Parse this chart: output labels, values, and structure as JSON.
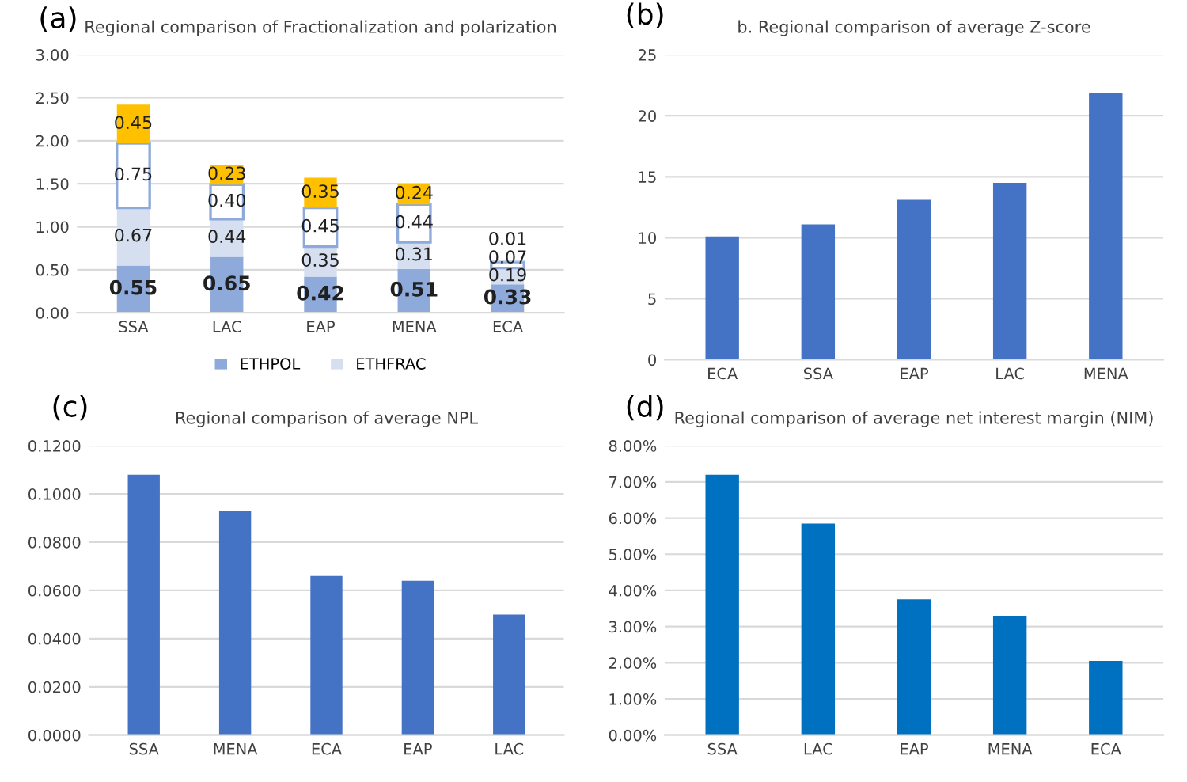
{
  "chart_data": [
    {
      "type": "bar",
      "stacked": true,
      "title": "Regional comparison of Fractionalization and polarization",
      "annotations": [
        "(a)"
      ],
      "categories": [
        "SSA",
        "LAC",
        "EAP",
        "MENA",
        "ECA"
      ],
      "series": [
        {
          "name": "ETHPOL",
          "color": "#8eaadb",
          "values": [
            0.55,
            0.65,
            0.42,
            0.51,
            0.33
          ],
          "value_labels": [
            "0.55",
            "0.65",
            "0.42",
            "0.51",
            "0.33"
          ]
        },
        {
          "name": "ETHFRAC",
          "color": "#d6dff0",
          "values": [
            0.67,
            0.44,
            0.35,
            0.31,
            0.19
          ],
          "value_labels": [
            "0.67",
            "0.44",
            "0.35",
            "0.31",
            "0.19"
          ]
        },
        {
          "color": "#ffffff",
          "values": [
            0.75,
            0.4,
            0.45,
            0.44,
            0.07
          ],
          "value_labels": [
            "0.75",
            "0.40",
            "0.45",
            "0.44",
            "0.07"
          ]
        },
        {
          "color": "#ffc000",
          "values": [
            0.45,
            0.23,
            0.35,
            0.24,
            0.01
          ],
          "value_labels": [
            "0.45",
            "0.23",
            "0.35",
            "0.24",
            "0.01"
          ]
        }
      ],
      "ylim": [
        0,
        3
      ],
      "yticks": [
        {
          "value": 0,
          "label": "0.00"
        },
        {
          "value": 0.5,
          "label": "0.50"
        },
        {
          "value": 1,
          "label": "1.00"
        },
        {
          "value": 1.5,
          "label": "1.50"
        },
        {
          "value": 2,
          "label": "2.00"
        },
        {
          "value": 2.5,
          "label": "2.50"
        },
        {
          "value": 3,
          "label": "3.00"
        }
      ],
      "grid": "y",
      "legend": "bottom"
    },
    {
      "type": "bar",
      "title": "b. Regional comparison of average Z-score",
      "annotations": [
        "(b)"
      ],
      "categories": [
        "ECA",
        "SSA",
        "EAP",
        "LAC",
        "MENA"
      ],
      "series": [
        {
          "color": "#4472c4",
          "values": [
            10.1,
            11.1,
            13.1,
            14.5,
            21.9
          ]
        }
      ],
      "ylim": [
        0,
        25
      ],
      "yticks": [
        0,
        5,
        10,
        15,
        20,
        25
      ],
      "grid": "y"
    },
    {
      "type": "bar",
      "title": "Regional comparison of average NPL",
      "annotations": [
        "(c)"
      ],
      "categories": [
        "SSA",
        "MENA",
        "ECA",
        "EAP",
        "LAC"
      ],
      "series": [
        {
          "color": "#4472c4",
          "values": [
            0.108,
            0.093,
            0.066,
            0.064,
            0.05
          ]
        }
      ],
      "ylim": [
        0,
        0.12
      ],
      "yticks": [
        {
          "value": 0,
          "label": "0.0000"
        },
        {
          "value": 0.02,
          "label": "0.0200"
        },
        {
          "value": 0.04,
          "label": "0.0400"
        },
        {
          "value": 0.06,
          "label": "0.0600"
        },
        {
          "value": 0.08,
          "label": "0.0800"
        },
        {
          "value": 0.1,
          "label": "0.1000"
        },
        {
          "value": 0.12,
          "label": "0.1200"
        }
      ],
      "grid": "y"
    },
    {
      "type": "bar",
      "title": "Regional comparison of average net interest margin (NIM)",
      "annotations": [
        "(d)"
      ],
      "categories": [
        "SSA",
        "LAC",
        "EAP",
        "MENA",
        "ECA"
      ],
      "series": [
        {
          "color": "#0070c0",
          "values": [
            7.2,
            5.85,
            3.75,
            3.3,
            2.05
          ]
        }
      ],
      "ylim": [
        0,
        8
      ],
      "yticks": [
        {
          "value": 0,
          "label": "0.00%"
        },
        {
          "value": 1,
          "label": "1.00%"
        },
        {
          "value": 2,
          "label": "2.00%"
        },
        {
          "value": 3,
          "label": "3.00%"
        },
        {
          "value": 4,
          "label": "4.00%"
        },
        {
          "value": 5,
          "label": "5.00%"
        },
        {
          "value": 6,
          "label": "6.00%"
        },
        {
          "value": 7,
          "label": "7.00%"
        },
        {
          "value": 8,
          "label": "8.00%"
        }
      ],
      "grid": "y"
    }
  ]
}
